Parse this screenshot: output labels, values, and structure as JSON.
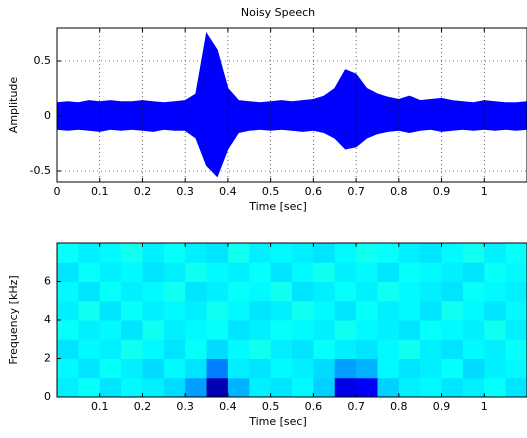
{
  "chart_data": [
    {
      "type": "area",
      "title": "Noisy Speech",
      "xlabel": "Time [sec]",
      "ylabel": "Amplitude",
      "color": "#0000ff",
      "grid": true,
      "x": [
        0,
        0.025,
        0.05,
        0.075,
        0.1,
        0.125,
        0.15,
        0.175,
        0.2,
        0.225,
        0.25,
        0.275,
        0.3,
        0.325,
        0.35,
        0.375,
        0.4,
        0.425,
        0.45,
        0.475,
        0.5,
        0.525,
        0.55,
        0.575,
        0.6,
        0.625,
        0.65,
        0.675,
        0.7,
        0.725,
        0.75,
        0.775,
        0.8,
        0.825,
        0.85,
        0.875,
        0.9,
        0.925,
        0.95,
        0.975,
        1,
        1.025,
        1.05,
        1.075,
        1.1
      ],
      "upper": [
        0.12,
        0.13,
        0.12,
        0.14,
        0.13,
        0.14,
        0.13,
        0.13,
        0.14,
        0.13,
        0.12,
        0.13,
        0.14,
        0.2,
        0.75,
        0.6,
        0.25,
        0.14,
        0.13,
        0.12,
        0.13,
        0.14,
        0.13,
        0.14,
        0.15,
        0.18,
        0.25,
        0.42,
        0.38,
        0.25,
        0.2,
        0.17,
        0.15,
        0.18,
        0.14,
        0.15,
        0.16,
        0.14,
        0.13,
        0.12,
        0.14,
        0.13,
        0.12,
        0.12,
        0.13
      ],
      "lower": [
        -0.12,
        -0.13,
        -0.12,
        -0.13,
        -0.14,
        -0.12,
        -0.13,
        -0.12,
        -0.13,
        -0.14,
        -0.12,
        -0.13,
        -0.13,
        -0.2,
        -0.45,
        -0.55,
        -0.3,
        -0.15,
        -0.13,
        -0.12,
        -0.13,
        -0.12,
        -0.13,
        -0.14,
        -0.13,
        -0.15,
        -0.2,
        -0.3,
        -0.28,
        -0.2,
        -0.16,
        -0.14,
        -0.13,
        -0.15,
        -0.13,
        -0.12,
        -0.14,
        -0.13,
        -0.12,
        -0.13,
        -0.12,
        -0.13,
        -0.12,
        -0.13,
        -0.12
      ],
      "xlim": [
        0,
        1.1
      ],
      "xticks": [
        0,
        0.1,
        0.2,
        0.3,
        0.4,
        0.5,
        0.6,
        0.7,
        0.8,
        0.9,
        1
      ],
      "ylim": [
        -0.6,
        0.8
      ],
      "yticks": [
        -0.5,
        0,
        0.5
      ]
    },
    {
      "type": "heatmap",
      "xlabel": "Time [sec]",
      "ylabel": "Frequency [kHz]",
      "colormap": "jet",
      "clim": [
        0,
        1
      ],
      "x": [
        0.025,
        0.075,
        0.125,
        0.175,
        0.225,
        0.275,
        0.325,
        0.375,
        0.425,
        0.475,
        0.525,
        0.575,
        0.625,
        0.675,
        0.725,
        0.775,
        0.825,
        0.875,
        0.925,
        0.975,
        1.025,
        1.075
      ],
      "y": [
        0.5,
        1.5,
        2.5,
        3.5,
        4.5,
        5.5,
        6.5,
        7.5
      ],
      "values": [
        [
          0.36,
          0.38,
          0.35,
          0.37,
          0.36,
          0.34,
          0.28,
          0.05,
          0.3,
          0.36,
          0.35,
          0.37,
          0.33,
          0.1,
          0.12,
          0.33,
          0.36,
          0.37,
          0.35,
          0.36,
          0.38,
          0.35
        ],
        [
          0.37,
          0.35,
          0.38,
          0.36,
          0.34,
          0.37,
          0.35,
          0.25,
          0.36,
          0.35,
          0.37,
          0.36,
          0.34,
          0.28,
          0.3,
          0.37,
          0.35,
          0.36,
          0.38,
          0.34,
          0.36,
          0.37
        ],
        [
          0.35,
          0.37,
          0.36,
          0.39,
          0.37,
          0.35,
          0.38,
          0.34,
          0.37,
          0.39,
          0.36,
          0.35,
          0.38,
          0.36,
          0.35,
          0.37,
          0.39,
          0.36,
          0.35,
          0.37,
          0.36,
          0.38
        ],
        [
          0.38,
          0.36,
          0.37,
          0.35,
          0.39,
          0.36,
          0.37,
          0.38,
          0.35,
          0.36,
          0.38,
          0.37,
          0.36,
          0.39,
          0.37,
          0.36,
          0.35,
          0.38,
          0.37,
          0.36,
          0.39,
          0.36
        ],
        [
          0.36,
          0.39,
          0.35,
          0.38,
          0.36,
          0.37,
          0.36,
          0.39,
          0.37,
          0.35,
          0.36,
          0.39,
          0.37,
          0.35,
          0.38,
          0.36,
          0.37,
          0.35,
          0.39,
          0.37,
          0.35,
          0.37
        ],
        [
          0.37,
          0.35,
          0.38,
          0.36,
          0.37,
          0.39,
          0.35,
          0.36,
          0.38,
          0.37,
          0.39,
          0.35,
          0.36,
          0.38,
          0.36,
          0.39,
          0.37,
          0.36,
          0.35,
          0.38,
          0.37,
          0.36
        ],
        [
          0.35,
          0.38,
          0.36,
          0.37,
          0.35,
          0.36,
          0.39,
          0.37,
          0.36,
          0.38,
          0.35,
          0.37,
          0.39,
          0.36,
          0.37,
          0.35,
          0.38,
          0.37,
          0.36,
          0.35,
          0.38,
          0.37
        ],
        [
          0.38,
          0.36,
          0.37,
          0.39,
          0.36,
          0.38,
          0.36,
          0.35,
          0.39,
          0.36,
          0.37,
          0.36,
          0.35,
          0.37,
          0.39,
          0.38,
          0.36,
          0.35,
          0.37,
          0.39,
          0.36,
          0.38
        ]
      ],
      "xlim": [
        0,
        1.1
      ],
      "xticks": [
        0.1,
        0.2,
        0.3,
        0.4,
        0.5,
        0.6,
        0.7,
        0.8,
        0.9,
        1
      ],
      "ylim": [
        0,
        8
      ],
      "yticks": [
        0,
        2,
        4,
        6
      ]
    }
  ]
}
